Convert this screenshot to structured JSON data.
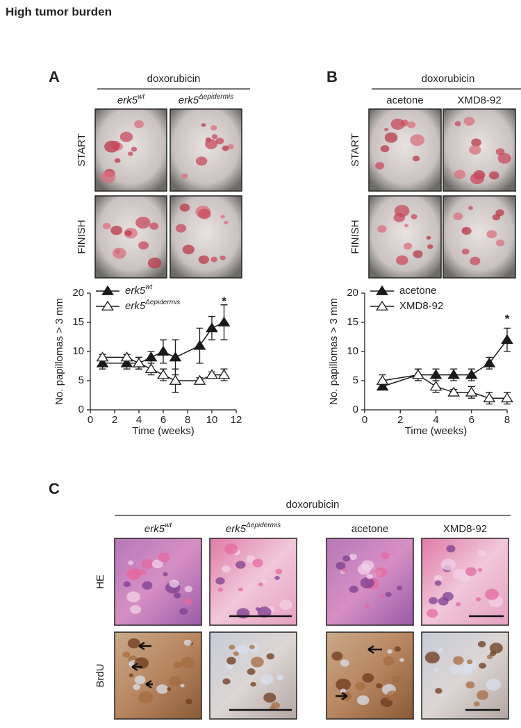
{
  "title": "High tumor burden",
  "panel_a": {
    "label": "A",
    "treatment": "doxorubicin",
    "columns": [
      [
        "erk5",
        "wt"
      ],
      [
        "erk5",
        "Δepidermis"
      ]
    ],
    "rows": [
      "START",
      "FINISH"
    ]
  },
  "panel_b": {
    "label": "B",
    "treatment": "doxorubicin",
    "columns": [
      "acetone",
      "XMD8-92"
    ],
    "rows": [
      "START",
      "FINISH"
    ]
  },
  "panel_c": {
    "label": "C",
    "treatment": "doxorubicin",
    "columns": [
      [
        "erk5",
        "wt"
      ],
      [
        "erk5",
        "Δepidermis"
      ],
      "acetone",
      "XMD8-92"
    ],
    "rows": [
      "HE",
      "BrdU"
    ]
  },
  "chart_data": [
    {
      "type": "line",
      "ylabel": "No. papillomas > 3 mm",
      "xlabel": "Time (weeks)",
      "x": [
        1,
        3,
        4,
        5,
        6,
        7,
        9,
        10,
        11
      ],
      "series": [
        {
          "name": [
            "erk5",
            "wt"
          ],
          "color": "#1a1a1a",
          "marker_fill": "#1a1a1a",
          "values": [
            8,
            8,
            8,
            9,
            10,
            9,
            11,
            14,
            15
          ],
          "errors": [
            1,
            1,
            1,
            1,
            2,
            3,
            3,
            2,
            3
          ]
        },
        {
          "name": [
            "erk5",
            "Δepidermis"
          ],
          "color": "#1a1a1a",
          "marker_fill": "#ffffff",
          "values": [
            9,
            9,
            8,
            7,
            6,
            5,
            5,
            6,
            6
          ],
          "errors": [
            0.5,
            0.5,
            1,
            1,
            1,
            2,
            0.5,
            0.5,
            1
          ]
        }
      ],
      "xlim": [
        0,
        12
      ],
      "ylim": [
        0,
        20
      ],
      "xticks": [
        0,
        2,
        4,
        6,
        8,
        10,
        12
      ],
      "yticks": [
        0,
        5,
        10,
        15,
        20
      ],
      "annotations": [
        {
          "text": "*",
          "x": 11,
          "y": 18.5
        }
      ],
      "legend": "upper left"
    },
    {
      "type": "line",
      "ylabel": "No. papillomas > 3 mm",
      "xlabel": "Time (weeks)",
      "x": [
        1,
        3,
        4,
        5,
        6,
        7,
        8
      ],
      "series": [
        {
          "name": "acetone",
          "color": "#1a1a1a",
          "marker_fill": "#1a1a1a",
          "values": [
            4,
            6,
            6,
            6,
            6,
            8,
            12
          ],
          "errors": [
            0.5,
            1,
            1,
            1,
            1,
            1,
            2
          ]
        },
        {
          "name": "XMD8-92",
          "color": "#1a1a1a",
          "marker_fill": "#ffffff",
          "values": [
            5,
            6,
            4,
            3,
            3,
            2,
            2
          ],
          "errors": [
            1,
            1,
            1,
            0.5,
            1,
            1,
            1
          ]
        }
      ],
      "xlim": [
        0,
        8
      ],
      "ylim": [
        0,
        20
      ],
      "xticks": [
        0,
        2,
        4,
        6,
        8
      ],
      "yticks": [
        0,
        5,
        10,
        15,
        20
      ],
      "annotations": [
        {
          "text": "*",
          "x": 8,
          "y": 15.5
        }
      ],
      "legend": "upper left"
    }
  ]
}
